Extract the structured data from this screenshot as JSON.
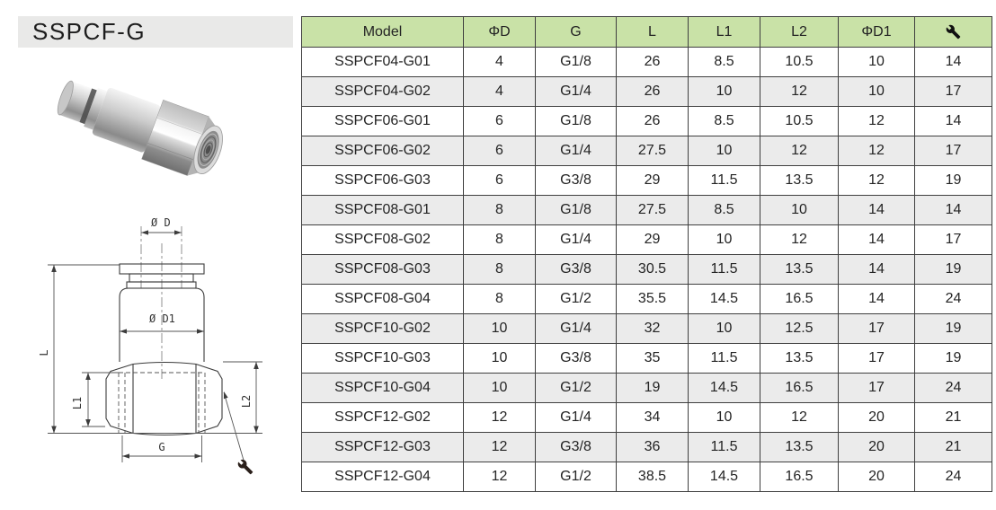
{
  "page": {
    "title": "SSPCF-G"
  },
  "colors": {
    "header_bg": "#c9e2a7",
    "row_alt_bg": "#ebebeb",
    "border": "#3f3f3f",
    "title_bg": "#e9e9e8"
  },
  "table": {
    "headers": [
      {
        "label": "Model"
      },
      {
        "label": "ΦD"
      },
      {
        "label": "G"
      },
      {
        "label": "L"
      },
      {
        "label": "L1"
      },
      {
        "label": "L2"
      },
      {
        "label": "ΦD1"
      },
      {
        "icon": "wrench-icon"
      }
    ],
    "rows": [
      [
        "SSPCF04-G01",
        "4",
        "G1/8",
        "26",
        "8.5",
        "10.5",
        "10",
        "14"
      ],
      [
        "SSPCF04-G02",
        "4",
        "G1/4",
        "26",
        "10",
        "12",
        "10",
        "17"
      ],
      [
        "SSPCF06-G01",
        "6",
        "G1/8",
        "26",
        "8.5",
        "10.5",
        "12",
        "14"
      ],
      [
        "SSPCF06-G02",
        "6",
        "G1/4",
        "27.5",
        "10",
        "12",
        "12",
        "17"
      ],
      [
        "SSPCF06-G03",
        "6",
        "G3/8",
        "29",
        "11.5",
        "13.5",
        "12",
        "19"
      ],
      [
        "SSPCF08-G01",
        "8",
        "G1/8",
        "27.5",
        "8.5",
        "10",
        "14",
        "14"
      ],
      [
        "SSPCF08-G02",
        "8",
        "G1/4",
        "29",
        "10",
        "12",
        "14",
        "17"
      ],
      [
        "SSPCF08-G03",
        "8",
        "G3/8",
        "30.5",
        "11.5",
        "13.5",
        "14",
        "19"
      ],
      [
        "SSPCF08-G04",
        "8",
        "G1/2",
        "35.5",
        "14.5",
        "16.5",
        "14",
        "24"
      ],
      [
        "SSPCF10-G02",
        "10",
        "G1/4",
        "32",
        "10",
        "12.5",
        "17",
        "19"
      ],
      [
        "SSPCF10-G03",
        "10",
        "G3/8",
        "35",
        "11.5",
        "13.5",
        "17",
        "19"
      ],
      [
        "SSPCF10-G04",
        "10",
        "G1/2",
        "19",
        "14.5",
        "16.5",
        "17",
        "24"
      ],
      [
        "SSPCF12-G02",
        "12",
        "G1/4",
        "34",
        "10",
        "12",
        "20",
        "21"
      ],
      [
        "SSPCF12-G03",
        "12",
        "G3/8",
        "36",
        "11.5",
        "13.5",
        "20",
        "21"
      ],
      [
        "SSPCF12-G04",
        "12",
        "G1/2",
        "38.5",
        "14.5",
        "16.5",
        "20",
        "24"
      ]
    ]
  },
  "drawing": {
    "labels": {
      "dim_d": "Ø D",
      "dim_d1": "Ø D1",
      "dim_l": "L",
      "dim_l1": "L1",
      "dim_l2": "L2",
      "dim_g": "G"
    },
    "leader_icon": "wrench-icon"
  }
}
